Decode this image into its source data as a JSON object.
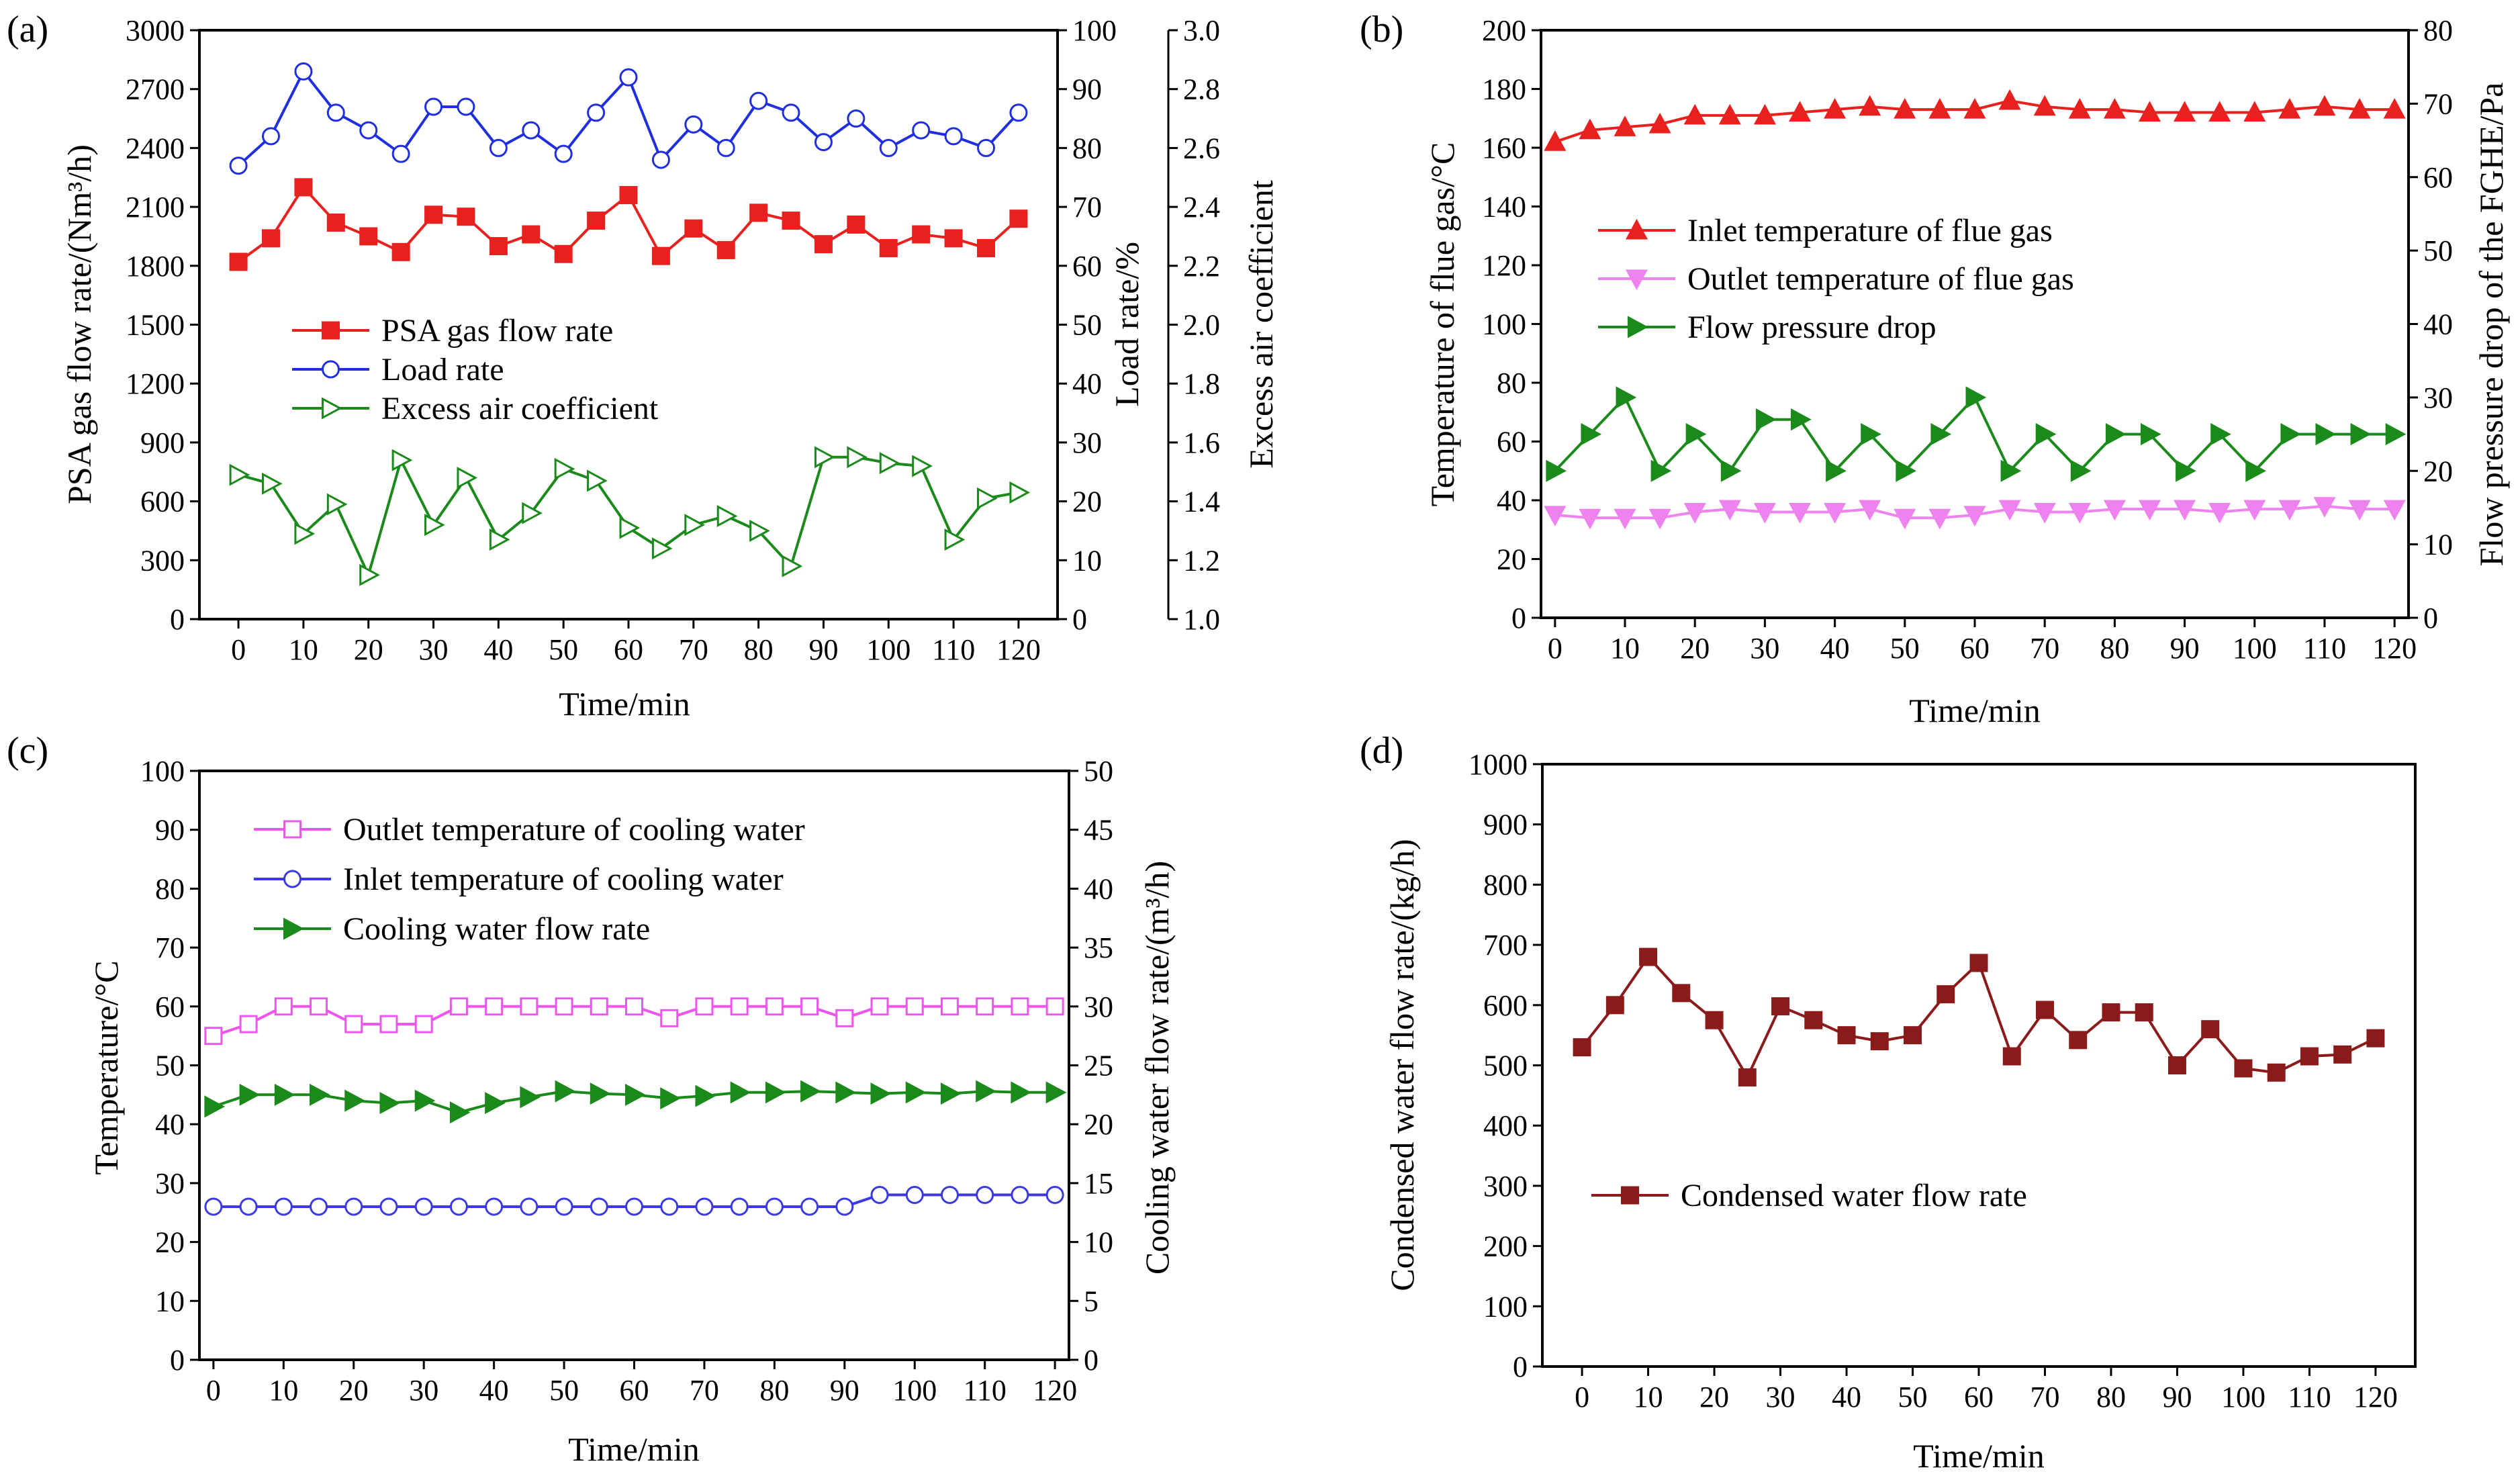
{
  "chart_data": [
    {
      "panel": "(a)",
      "type": "line",
      "xlabel": "Time/min",
      "x": [
        0,
        5,
        10,
        15,
        20,
        25,
        30,
        35,
        40,
        45,
        50,
        55,
        60,
        65,
        70,
        75,
        80,
        85,
        90,
        95,
        100,
        105,
        110,
        115,
        120
      ],
      "xlim": [
        -6,
        126
      ],
      "xticks": [
        0,
        10,
        20,
        30,
        40,
        50,
        60,
        70,
        80,
        90,
        100,
        110,
        120
      ],
      "axes": [
        {
          "id": "left",
          "label": "PSA gas flow rate/(Nm³/h)",
          "lim": [
            0,
            3000
          ],
          "ticks": [
            0,
            300,
            600,
            900,
            1200,
            1500,
            1800,
            2100,
            2400,
            2700,
            3000
          ]
        },
        {
          "id": "right1",
          "label": "Load rate/%",
          "lim": [
            0,
            100
          ],
          "ticks": [
            0,
            10,
            20,
            30,
            40,
            50,
            60,
            70,
            80,
            90,
            100
          ]
        },
        {
          "id": "right2",
          "label": "Excess air coefficient",
          "lim": [
            1.0,
            3.0
          ],
          "ticks": [
            "1.0",
            "1.2",
            "1.4",
            "1.6",
            "1.8",
            "2.0",
            "2.2",
            "2.4",
            "2.6",
            "2.8",
            "3.0"
          ]
        }
      ],
      "series": [
        {
          "name": "PSA gas flow rate",
          "axis": "left",
          "color": "#e8201e",
          "marker": "square-filled",
          "values": [
            1820,
            1940,
            2200,
            2020,
            1950,
            1870,
            2060,
            2050,
            1900,
            1960,
            1860,
            2030,
            2160,
            1850,
            1990,
            1880,
            2070,
            2030,
            1910,
            2010,
            1890,
            1960,
            1940,
            1890,
            2040
          ]
        },
        {
          "name": "Load rate",
          "axis": "right1",
          "color": "#1f2fe0",
          "marker": "circle-open",
          "values": [
            77,
            82,
            93,
            86,
            83,
            79,
            87,
            87,
            80,
            83,
            79,
            86,
            92,
            78,
            84,
            80,
            88,
            86,
            81,
            85,
            80,
            83,
            82,
            80,
            86
          ]
        },
        {
          "name": "Excess air coefficient",
          "axis": "right2",
          "color": "#1a8a1a",
          "marker": "triangle-right-open",
          "values": [
            1.49,
            1.46,
            1.29,
            1.39,
            1.15,
            1.54,
            1.32,
            1.48,
            1.27,
            1.36,
            1.51,
            1.47,
            1.31,
            1.24,
            1.32,
            1.35,
            1.3,
            1.18,
            1.55,
            1.55,
            1.53,
            1.52,
            1.27,
            1.41,
            1.43
          ]
        }
      ]
    },
    {
      "panel": "(b)",
      "type": "line",
      "xlabel": "Time/min",
      "x": [
        0,
        5,
        10,
        15,
        20,
        25,
        30,
        35,
        40,
        45,
        50,
        55,
        60,
        65,
        70,
        75,
        80,
        85,
        90,
        95,
        100,
        105,
        110,
        115,
        120
      ],
      "xlim": [
        -2,
        122
      ],
      "xticks": [
        0,
        10,
        20,
        30,
        40,
        50,
        60,
        70,
        80,
        90,
        100,
        110,
        120
      ],
      "axes": [
        {
          "id": "left",
          "label": "Temperature of flue gas/°C",
          "lim": [
            0,
            200
          ],
          "ticks": [
            0,
            20,
            40,
            60,
            80,
            100,
            120,
            140,
            160,
            180,
            200
          ]
        },
        {
          "id": "right1",
          "label": "Flow pressure drop of the FGHE/Pa",
          "lim": [
            0,
            80
          ],
          "ticks": [
            0,
            10,
            20,
            30,
            40,
            50,
            60,
            70,
            80
          ]
        }
      ],
      "series": [
        {
          "name": "Inlet temperature of flue gas",
          "axis": "left",
          "color": "#e8201e",
          "marker": "triangle-up-filled",
          "values": [
            162,
            166,
            167,
            168,
            171,
            171,
            171,
            172,
            173,
            174,
            173,
            173,
            173,
            176,
            174,
            173,
            173,
            172,
            172,
            172,
            172,
            173,
            174,
            173,
            173
          ]
        },
        {
          "name": "Outlet temperature of flue gas",
          "axis": "left",
          "color": "#ee82ee",
          "marker": "triangle-down-filled",
          "values": [
            35,
            34,
            34,
            34,
            36,
            37,
            36,
            36,
            36,
            37,
            34,
            34,
            35,
            37,
            36,
            36,
            37,
            37,
            37,
            36,
            37,
            37,
            38,
            37,
            37
          ]
        },
        {
          "name": "Flow pressure drop",
          "axis": "right1",
          "color": "#1a8a1a",
          "marker": "triangle-right-filled",
          "values": [
            20,
            25,
            30,
            20,
            25,
            20,
            27,
            27,
            20,
            25,
            20,
            25,
            30,
            20,
            25,
            20,
            25,
            25,
            20,
            25,
            20,
            25,
            25,
            25,
            25
          ]
        }
      ]
    },
    {
      "panel": "(c)",
      "type": "line",
      "xlabel": "Time/min",
      "x": [
        0,
        5,
        10,
        15,
        20,
        25,
        30,
        35,
        40,
        45,
        50,
        55,
        60,
        65,
        70,
        75,
        80,
        85,
        90,
        95,
        100,
        105,
        110,
        115,
        120
      ],
      "xlim": [
        -2,
        122
      ],
      "xticks": [
        0,
        10,
        20,
        30,
        40,
        50,
        60,
        70,
        80,
        90,
        100,
        110,
        120
      ],
      "axes": [
        {
          "id": "left",
          "label": "Temperature/°C",
          "lim": [
            0,
            100
          ],
          "ticks": [
            0,
            10,
            20,
            30,
            40,
            50,
            60,
            70,
            80,
            90,
            100
          ]
        },
        {
          "id": "right1",
          "label": "Cooling water flow rate/(m³/h)",
          "lim": [
            0,
            50
          ],
          "ticks": [
            0,
            5,
            10,
            15,
            20,
            25,
            30,
            35,
            40,
            45,
            50
          ]
        }
      ],
      "series": [
        {
          "name": "Outlet temperature of cooling water",
          "axis": "left",
          "color": "#ee55ee",
          "marker": "square-open",
          "values": [
            55,
            57,
            60,
            60,
            57,
            57,
            57,
            60,
            60,
            60,
            60,
            60,
            60,
            58,
            60,
            60,
            60,
            60,
            58,
            60,
            60,
            60,
            60,
            60,
            60
          ]
        },
        {
          "name": "Inlet temperature of cooling water",
          "axis": "left",
          "color": "#3a3ae0",
          "marker": "circle-open",
          "values": [
            26,
            26,
            26,
            26,
            26,
            26,
            26,
            26,
            26,
            26,
            26,
            26,
            26,
            26,
            26,
            26,
            26,
            26,
            26,
            28,
            28,
            28,
            28,
            28,
            28
          ]
        },
        {
          "name": "Cooling water flow rate",
          "axis": "right1",
          "color": "#1a8a1a",
          "marker": "triangle-right-filled",
          "values": [
            21.5,
            22.5,
            22.5,
            22.5,
            22,
            21.8,
            22,
            21,
            21.8,
            22.3,
            22.8,
            22.6,
            22.5,
            22.2,
            22.4,
            22.7,
            22.7,
            22.8,
            22.7,
            22.6,
            22.7,
            22.6,
            22.8,
            22.7,
            22.7
          ]
        }
      ]
    },
    {
      "panel": "(d)",
      "type": "line",
      "xlabel": "Time/min",
      "x": [
        0,
        5,
        10,
        15,
        20,
        25,
        30,
        35,
        40,
        45,
        50,
        55,
        60,
        65,
        70,
        75,
        80,
        85,
        90,
        95,
        100,
        105,
        110,
        115,
        120
      ],
      "xlim": [
        -6,
        126
      ],
      "xticks": [
        0,
        10,
        20,
        30,
        40,
        50,
        60,
        70,
        80,
        90,
        100,
        110,
        120
      ],
      "axes": [
        {
          "id": "left",
          "label": "Condensed water flow rate/(kg/h)",
          "lim": [
            0,
            1000
          ],
          "ticks": [
            0,
            100,
            200,
            300,
            400,
            500,
            600,
            700,
            800,
            900,
            1000
          ]
        }
      ],
      "series": [
        {
          "name": "Condensed water flow rate",
          "axis": "left",
          "color": "#8b1a1a",
          "marker": "square-filled",
          "values": [
            530,
            600,
            680,
            620,
            575,
            480,
            598,
            575,
            550,
            540,
            550,
            618,
            670,
            515,
            592,
            542,
            588,
            588,
            500,
            560,
            495,
            488,
            515,
            518,
            545
          ]
        }
      ]
    }
  ]
}
